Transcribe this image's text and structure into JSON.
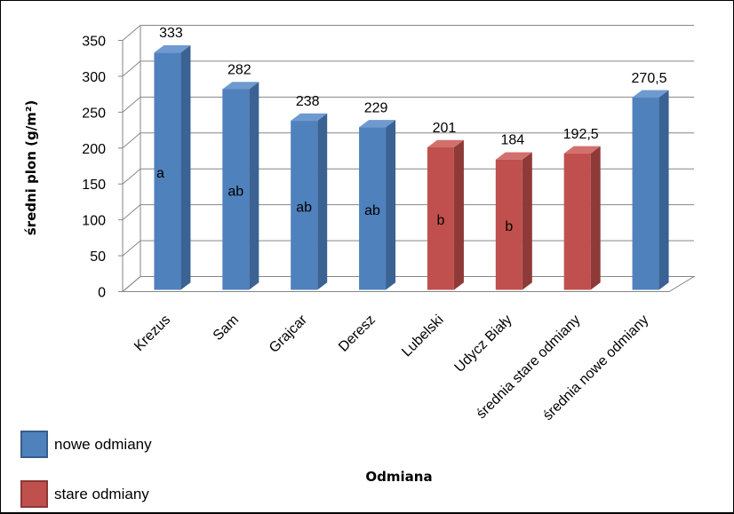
{
  "chart_data": {
    "type": "bar",
    "title": "",
    "xlabel": "Odmiana",
    "ylabel": "średni plon (g/m²)",
    "ylim": [
      0,
      350
    ],
    "yticks": [
      0,
      50,
      100,
      150,
      200,
      250,
      300,
      350
    ],
    "categories": [
      "Krezus",
      "Sam",
      "Grajcar",
      "Deresz",
      "Lubelski",
      "Udycz Biały",
      "średnia stare odmiany",
      "średnia nowe odmiany"
    ],
    "values": [
      333,
      282,
      238,
      229,
      201,
      184,
      192.5,
      270.5
    ],
    "value_labels": [
      "333",
      "282",
      "238",
      "229",
      "201",
      "184",
      "192,5",
      "270,5"
    ],
    "group_labels": [
      "a",
      "ab",
      "ab",
      "ab",
      "b",
      "b",
      "",
      ""
    ],
    "series_of_bar": [
      "nowe",
      "nowe",
      "nowe",
      "nowe",
      "stare",
      "stare",
      "stare",
      "nowe"
    ],
    "grid": true,
    "legend_position": "bottom-left",
    "legend": [
      {
        "key": "nowe",
        "label": "nowe odmiany",
        "color": "#4F81BD"
      },
      {
        "key": "stare",
        "label": "stare odmiany",
        "color": "#C0504D"
      }
    ]
  }
}
